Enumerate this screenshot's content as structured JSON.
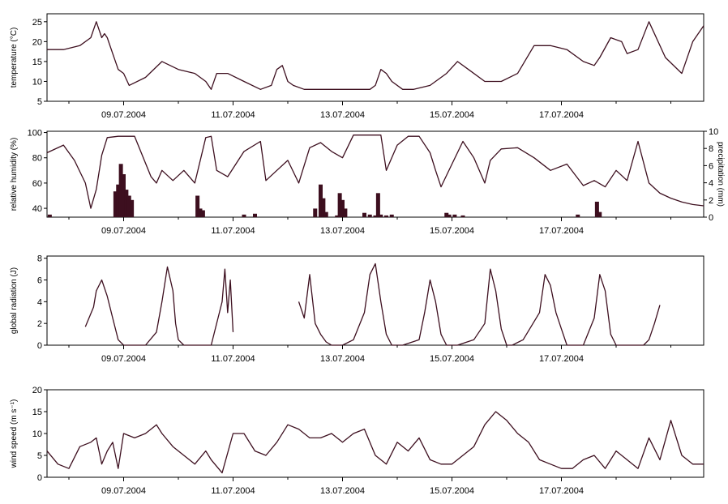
{
  "line_color": "#3d0f1f",
  "bar_color": "#3d0f1f",
  "chart_data": [
    {
      "type": "line",
      "ylabel": "temperature (°C)",
      "ylim": [
        5,
        27
      ],
      "yticks": [
        5,
        10,
        15,
        20,
        25
      ],
      "xlim": [
        0,
        12
      ],
      "x_tick_labels": [
        "09.07.2004",
        "11.07.2004",
        "13.07.2004",
        "15.07.2004",
        "17.07.2004"
      ],
      "x_tick_positions": [
        1.4,
        3.4,
        5.4,
        7.4,
        9.4
      ],
      "series": [
        {
          "x": [
            0,
            0.3,
            0.6,
            0.8,
            0.9,
            1.0,
            1.05,
            1.1,
            1.2,
            1.3,
            1.4,
            1.5,
            1.8,
            2.1,
            2.4,
            2.7,
            2.9,
            3.0,
            3.1,
            3.3,
            3.6,
            3.9,
            4.1,
            4.2,
            4.3,
            4.4,
            4.5,
            4.7,
            5.0,
            5.3,
            5.6,
            5.9,
            6.0,
            6.1,
            6.2,
            6.3,
            6.5,
            6.7,
            7.0,
            7.3,
            7.5,
            7.7,
            8.0,
            8.3,
            8.6,
            8.9,
            9.2,
            9.5,
            9.8,
            10.0,
            10.1,
            10.3,
            10.5,
            10.6,
            10.8,
            11.0,
            11.3,
            11.6,
            11.8,
            12
          ],
          "y": [
            18,
            18,
            19,
            21,
            25,
            21,
            22,
            21,
            17,
            13,
            12,
            9,
            11,
            15,
            13,
            12,
            10,
            8,
            12,
            12,
            10,
            8,
            9,
            13,
            14,
            10,
            9,
            8,
            8,
            8,
            8,
            8,
            9,
            13,
            12,
            10,
            8,
            8,
            9,
            12,
            15,
            13,
            10,
            10,
            12,
            19,
            19,
            18,
            15,
            14,
            16,
            21,
            20,
            17,
            18,
            25,
            16,
            12,
            20,
            24
          ]
        }
      ]
    },
    {
      "type": "line+bar",
      "ylabel": "relative humidity (%)",
      "ylim": [
        33,
        101
      ],
      "yticks": [
        40,
        60,
        80,
        100
      ],
      "y2lim": [
        0,
        10
      ],
      "y2ticks": [
        0,
        2,
        4,
        6,
        8,
        10
      ],
      "y2label": "precipitation (mm)",
      "xlim": [
        0,
        12
      ],
      "x_tick_labels": [
        "09.07.2004",
        "11.07.2004",
        "13.07.2004",
        "15.07.2004",
        "17.07.2004"
      ],
      "x_tick_positions": [
        1.4,
        3.4,
        5.4,
        7.4,
        9.4
      ],
      "series": [
        {
          "x": [
            0,
            0.3,
            0.5,
            0.7,
            0.8,
            0.9,
            1.0,
            1.1,
            1.3,
            1.6,
            1.9,
            2.0,
            2.1,
            2.3,
            2.5,
            2.7,
            2.9,
            3.0,
            3.1,
            3.3,
            3.6,
            3.9,
            4.0,
            4.2,
            4.4,
            4.6,
            4.8,
            5.0,
            5.2,
            5.4,
            5.6,
            5.8,
            6.0,
            6.1,
            6.2,
            6.4,
            6.6,
            6.8,
            7.0,
            7.1,
            7.2,
            7.4,
            7.6,
            7.8,
            8.0,
            8.1,
            8.3,
            8.6,
            8.9,
            9.2,
            9.5,
            9.8,
            10.0,
            10.2,
            10.4,
            10.6,
            10.8,
            11.0,
            11.2,
            11.4,
            11.6,
            11.8,
            12
          ],
          "y": [
            84,
            90,
            78,
            60,
            40,
            55,
            82,
            96,
            97,
            97,
            65,
            60,
            70,
            62,
            70,
            60,
            96,
            97,
            70,
            65,
            85,
            93,
            62,
            70,
            78,
            60,
            88,
            92,
            85,
            80,
            98,
            98,
            98,
            98,
            70,
            90,
            97,
            97,
            84,
            70,
            57,
            75,
            93,
            80,
            60,
            78,
            87,
            88,
            80,
            70,
            75,
            58,
            62,
            57,
            70,
            62,
            93,
            60,
            52,
            48,
            45,
            43,
            42
          ]
        }
      ],
      "bars": {
        "x": [
          0.05,
          1.25,
          1.3,
          1.35,
          1.4,
          1.45,
          1.5,
          1.55,
          2.75,
          2.8,
          2.85,
          3.6,
          3.8,
          4.9,
          5.0,
          5.05,
          5.1,
          5.3,
          5.35,
          5.4,
          5.45,
          5.8,
          5.9,
          6.0,
          6.05,
          6.1,
          6.2,
          6.3,
          7.3,
          7.35,
          7.45,
          7.6,
          9.7,
          10.05,
          10.1
        ],
        "values": [
          0.3,
          3.0,
          3.8,
          6.2,
          5.0,
          3.2,
          2.5,
          2.0,
          2.5,
          1.0,
          0.8,
          0.3,
          0.4,
          1.0,
          3.8,
          2.2,
          0.6,
          0.2,
          2.8,
          2.0,
          1.0,
          0.5,
          0.3,
          0.2,
          2.8,
          0.3,
          0.2,
          0.3,
          0.5,
          0.3,
          0.3,
          0.2,
          0.3,
          1.8,
          0.6
        ]
      }
    },
    {
      "type": "line",
      "ylabel": "global radiation (J)",
      "ylim": [
        0,
        8.2
      ],
      "yticks": [
        0,
        2,
        4,
        6,
        8
      ],
      "xlim": [
        0,
        12
      ],
      "x_tick_labels": [
        "09.07.2004",
        "11.07.2004",
        "13.07.2004",
        "15.07.2004",
        "17.07.2004"
      ],
      "x_tick_positions": [
        1.4,
        3.4,
        5.4,
        7.4,
        9.4
      ],
      "series": [
        {
          "x": [
            0.7,
            0.85,
            0.9,
            1.0,
            1.1,
            1.2,
            1.3,
            1.4,
            1.5,
            1.8,
            2.0,
            2.1,
            2.2,
            2.3,
            2.35,
            2.4,
            2.5,
            2.7,
            3.0,
            3.2,
            3.25,
            3.3,
            3.35,
            3.4
          ],
          "y": [
            1.7,
            3.5,
            5.0,
            6.0,
            4.5,
            2.5,
            0.5,
            0,
            0,
            0,
            1.2,
            4.0,
            7.2,
            5.0,
            2.0,
            0.5,
            0,
            0,
            0,
            4.0,
            7.0,
            3.0,
            6.0,
            1.2
          ]
        },
        {
          "x": [
            4.6,
            4.7,
            4.8,
            4.9,
            5.0,
            5.1,
            5.2,
            5.4,
            5.6,
            5.8,
            5.9,
            6.0,
            6.1,
            6.2,
            6.3,
            6.5,
            6.8,
            6.9,
            7.0,
            7.1,
            7.2,
            7.3,
            7.5,
            7.8,
            8.0,
            8.1,
            8.2,
            8.3,
            8.4,
            8.5,
            8.7,
            9.0,
            9.1,
            9.2,
            9.3,
            9.4,
            9.5,
            9.8,
            10.0,
            10.1,
            10.2,
            10.3,
            10.4,
            10.6,
            10.9,
            11.0,
            11.1,
            11.2
          ],
          "y": [
            4.0,
            2.5,
            6.5,
            2.0,
            1.0,
            0.3,
            0,
            0,
            0.5,
            3.0,
            6.5,
            7.5,
            4.0,
            1.0,
            0,
            0,
            0.5,
            3.0,
            6.0,
            4.0,
            1.0,
            0,
            0,
            0.5,
            2.0,
            7.0,
            5.0,
            1.5,
            0,
            0,
            0.5,
            3.0,
            6.5,
            5.5,
            3.0,
            1.5,
            0,
            0,
            2.5,
            6.5,
            5.0,
            1.0,
            0,
            0,
            0,
            0.5,
            2.0,
            3.7
          ]
        }
      ]
    },
    {
      "type": "line",
      "ylabel": "wind speed (m s⁻¹)",
      "ylim": [
        0,
        20
      ],
      "yticks": [
        0,
        5,
        10,
        15,
        20
      ],
      "xlim": [
        0,
        12
      ],
      "x_tick_labels": [
        "09.07.2004",
        "11.07.2004",
        "13.07.2004",
        "15.07.2004",
        "17.07.2004"
      ],
      "x_tick_positions": [
        1.4,
        3.4,
        5.4,
        7.4,
        9.4
      ],
      "series": [
        {
          "x": [
            0,
            0.2,
            0.4,
            0.6,
            0.8,
            0.9,
            1.0,
            1.1,
            1.2,
            1.3,
            1.4,
            1.6,
            1.8,
            2.0,
            2.1,
            2.3,
            2.5,
            2.7,
            2.9,
            3.0,
            3.2,
            3.4,
            3.6,
            3.8,
            4.0,
            4.2,
            4.4,
            4.6,
            4.8,
            5.0,
            5.2,
            5.4,
            5.6,
            5.8,
            6.0,
            6.2,
            6.4,
            6.6,
            6.8,
            7.0,
            7.2,
            7.4,
            7.6,
            7.8,
            8.0,
            8.2,
            8.4,
            8.6,
            8.8,
            9.0,
            9.2,
            9.4,
            9.6,
            9.8,
            10.0,
            10.2,
            10.4,
            10.6,
            10.8,
            11.0,
            11.2,
            11.4,
            11.6,
            11.8,
            12
          ],
          "y": [
            6,
            3,
            2,
            7,
            8,
            9,
            3,
            6,
            8,
            2,
            10,
            9,
            10,
            12,
            10,
            7,
            5,
            3,
            6,
            4,
            1,
            10,
            10,
            6,
            5,
            8,
            12,
            11,
            9,
            9,
            10,
            8,
            10,
            11,
            5,
            3,
            8,
            6,
            9,
            4,
            3,
            3,
            5,
            7,
            12,
            15,
            13,
            10,
            8,
            4,
            3,
            2,
            2,
            4,
            5,
            2,
            6,
            4,
            2,
            9,
            4,
            13,
            5,
            3,
            3
          ]
        }
      ]
    }
  ]
}
